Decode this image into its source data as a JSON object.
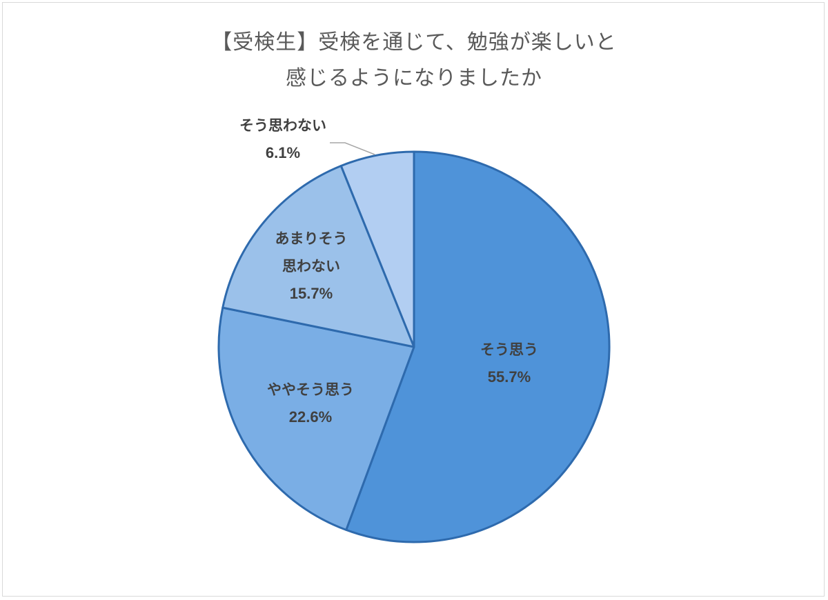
{
  "title": {
    "line1": "【受検生】受検を通じて、勉強が楽しいと",
    "line2": "感じるようになりましたか"
  },
  "colors": {
    "border": "#2e6aad",
    "leader": "#a6a6a6",
    "text": "#404040",
    "title": "#595959"
  },
  "slices": [
    {
      "label": "そう思う",
      "label_lines": [
        "そう思う"
      ],
      "value": 55.7,
      "pct_text": "55.7%",
      "color": "#4f93d9"
    },
    {
      "label": "ややそう思う",
      "label_lines": [
        "ややそう思う"
      ],
      "value": 22.6,
      "pct_text": "22.6%",
      "color": "#7aaee5"
    },
    {
      "label": "あまりそう思わない",
      "label_lines": [
        "あまりそう",
        "思わない"
      ],
      "value": 15.7,
      "pct_text": "15.7%",
      "color": "#9bc1ea"
    },
    {
      "label": "そう思わない",
      "label_lines": [
        "そう思わない"
      ],
      "value": 6.1,
      "pct_text": "6.1%",
      "color": "#b2cef2"
    }
  ],
  "chart_data": {
    "type": "pie",
    "title": "【受検生】受検を通じて、勉強が楽しいと感じるようになりましたか",
    "categories": [
      "そう思う",
      "ややそう思う",
      "あまりそう思わない",
      "そう思わない"
    ],
    "values": [
      55.7,
      22.6,
      15.7,
      6.1
    ],
    "unit": "%",
    "start_angle": "12 o'clock",
    "direction": "clockwise",
    "legend": "none (data labels on slices)"
  }
}
